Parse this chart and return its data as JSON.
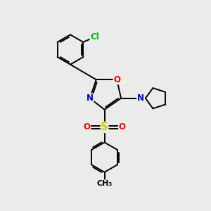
{
  "background_color": "#ebebeb",
  "bond_color": "#000000",
  "atom_colors": {
    "O": "#ff0000",
    "N": "#0000cd",
    "S": "#cccc00",
    "Cl": "#00bb00",
    "C": "#000000"
  },
  "font_size": 8.5,
  "line_width": 1.4,
  "figsize": [
    3.0,
    3.0
  ],
  "dpi": 100
}
